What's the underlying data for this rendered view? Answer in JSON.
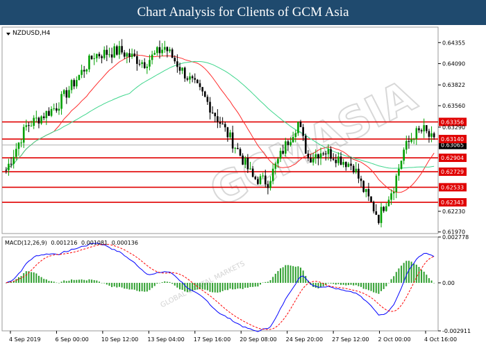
{
  "header": {
    "title": "Chart Analysis for Clients of GCM Asia"
  },
  "watermark": {
    "text": "GCMASIA",
    "subtext": "GLOBAL CAPITAL MARKETS"
  },
  "chart_data": [
    {
      "type": "candlestick",
      "symbol_label": "NZDUSD,H4",
      "ylim": [
        0.6195,
        0.6455
      ],
      "y_ticks": [
        "0.64355",
        "0.64090",
        "0.63822",
        "0.63560",
        "0.63290",
        "0.62230",
        "0.61970"
      ],
      "x_ticks": [
        "4 Sep 2019",
        "6 Sep 00:00",
        "10 Sep 12:00",
        "13 Sep 04:00",
        "17 Sep 16:00",
        "20 Sep 08:00",
        "24 Sep 20:00",
        "27 Sep 12:00",
        "2 Oct 00:00",
        "4 Oct 16:00"
      ],
      "current_price": "0.63065",
      "levels": [
        "0.63356",
        "0.63140",
        "0.62904",
        "0.62729",
        "0.62533",
        "0.62343"
      ],
      "colors": {
        "bull": "#00a000",
        "bear": "#000000",
        "fast_ma": "#ff2a2a",
        "slow_ma": "#3ed68c",
        "level": "#e00000",
        "price_line": "#b0b0b0"
      },
      "anchors": [
        [
          0,
          0.6275
        ],
        [
          8,
          0.633
        ],
        [
          20,
          0.6355
        ],
        [
          35,
          0.642
        ],
        [
          45,
          0.6425
        ],
        [
          55,
          0.641
        ],
        [
          63,
          0.643
        ],
        [
          70,
          0.64
        ],
        [
          78,
          0.637
        ],
        [
          86,
          0.633
        ],
        [
          92,
          0.63
        ],
        [
          98,
          0.6265
        ],
        [
          104,
          0.626
        ],
        [
          110,
          0.63
        ],
        [
          116,
          0.6335
        ],
        [
          120,
          0.629
        ],
        [
          126,
          0.63
        ],
        [
          132,
          0.629
        ],
        [
          138,
          0.628
        ],
        [
          142,
          0.625
        ],
        [
          148,
          0.6215
        ],
        [
          150,
          0.623
        ],
        [
          154,
          0.6255
        ],
        [
          158,
          0.63
        ],
        [
          162,
          0.632
        ],
        [
          166,
          0.6325
        ],
        [
          170,
          0.631
        ]
      ],
      "candle_count": 171,
      "seed": 7
    },
    {
      "type": "macd",
      "label": "MACD(12,26,9)",
      "values_text": [
        "0.001216",
        "0.001081",
        "0.000136"
      ],
      "ylim": [
        -0.00291,
        0.002778
      ],
      "y_ticks": [
        "0.002778",
        "0.00",
        "-0.002911"
      ],
      "colors": {
        "main": "#0000ff",
        "signal": "#ff0000",
        "hist": "#2f9f2f"
      }
    }
  ]
}
